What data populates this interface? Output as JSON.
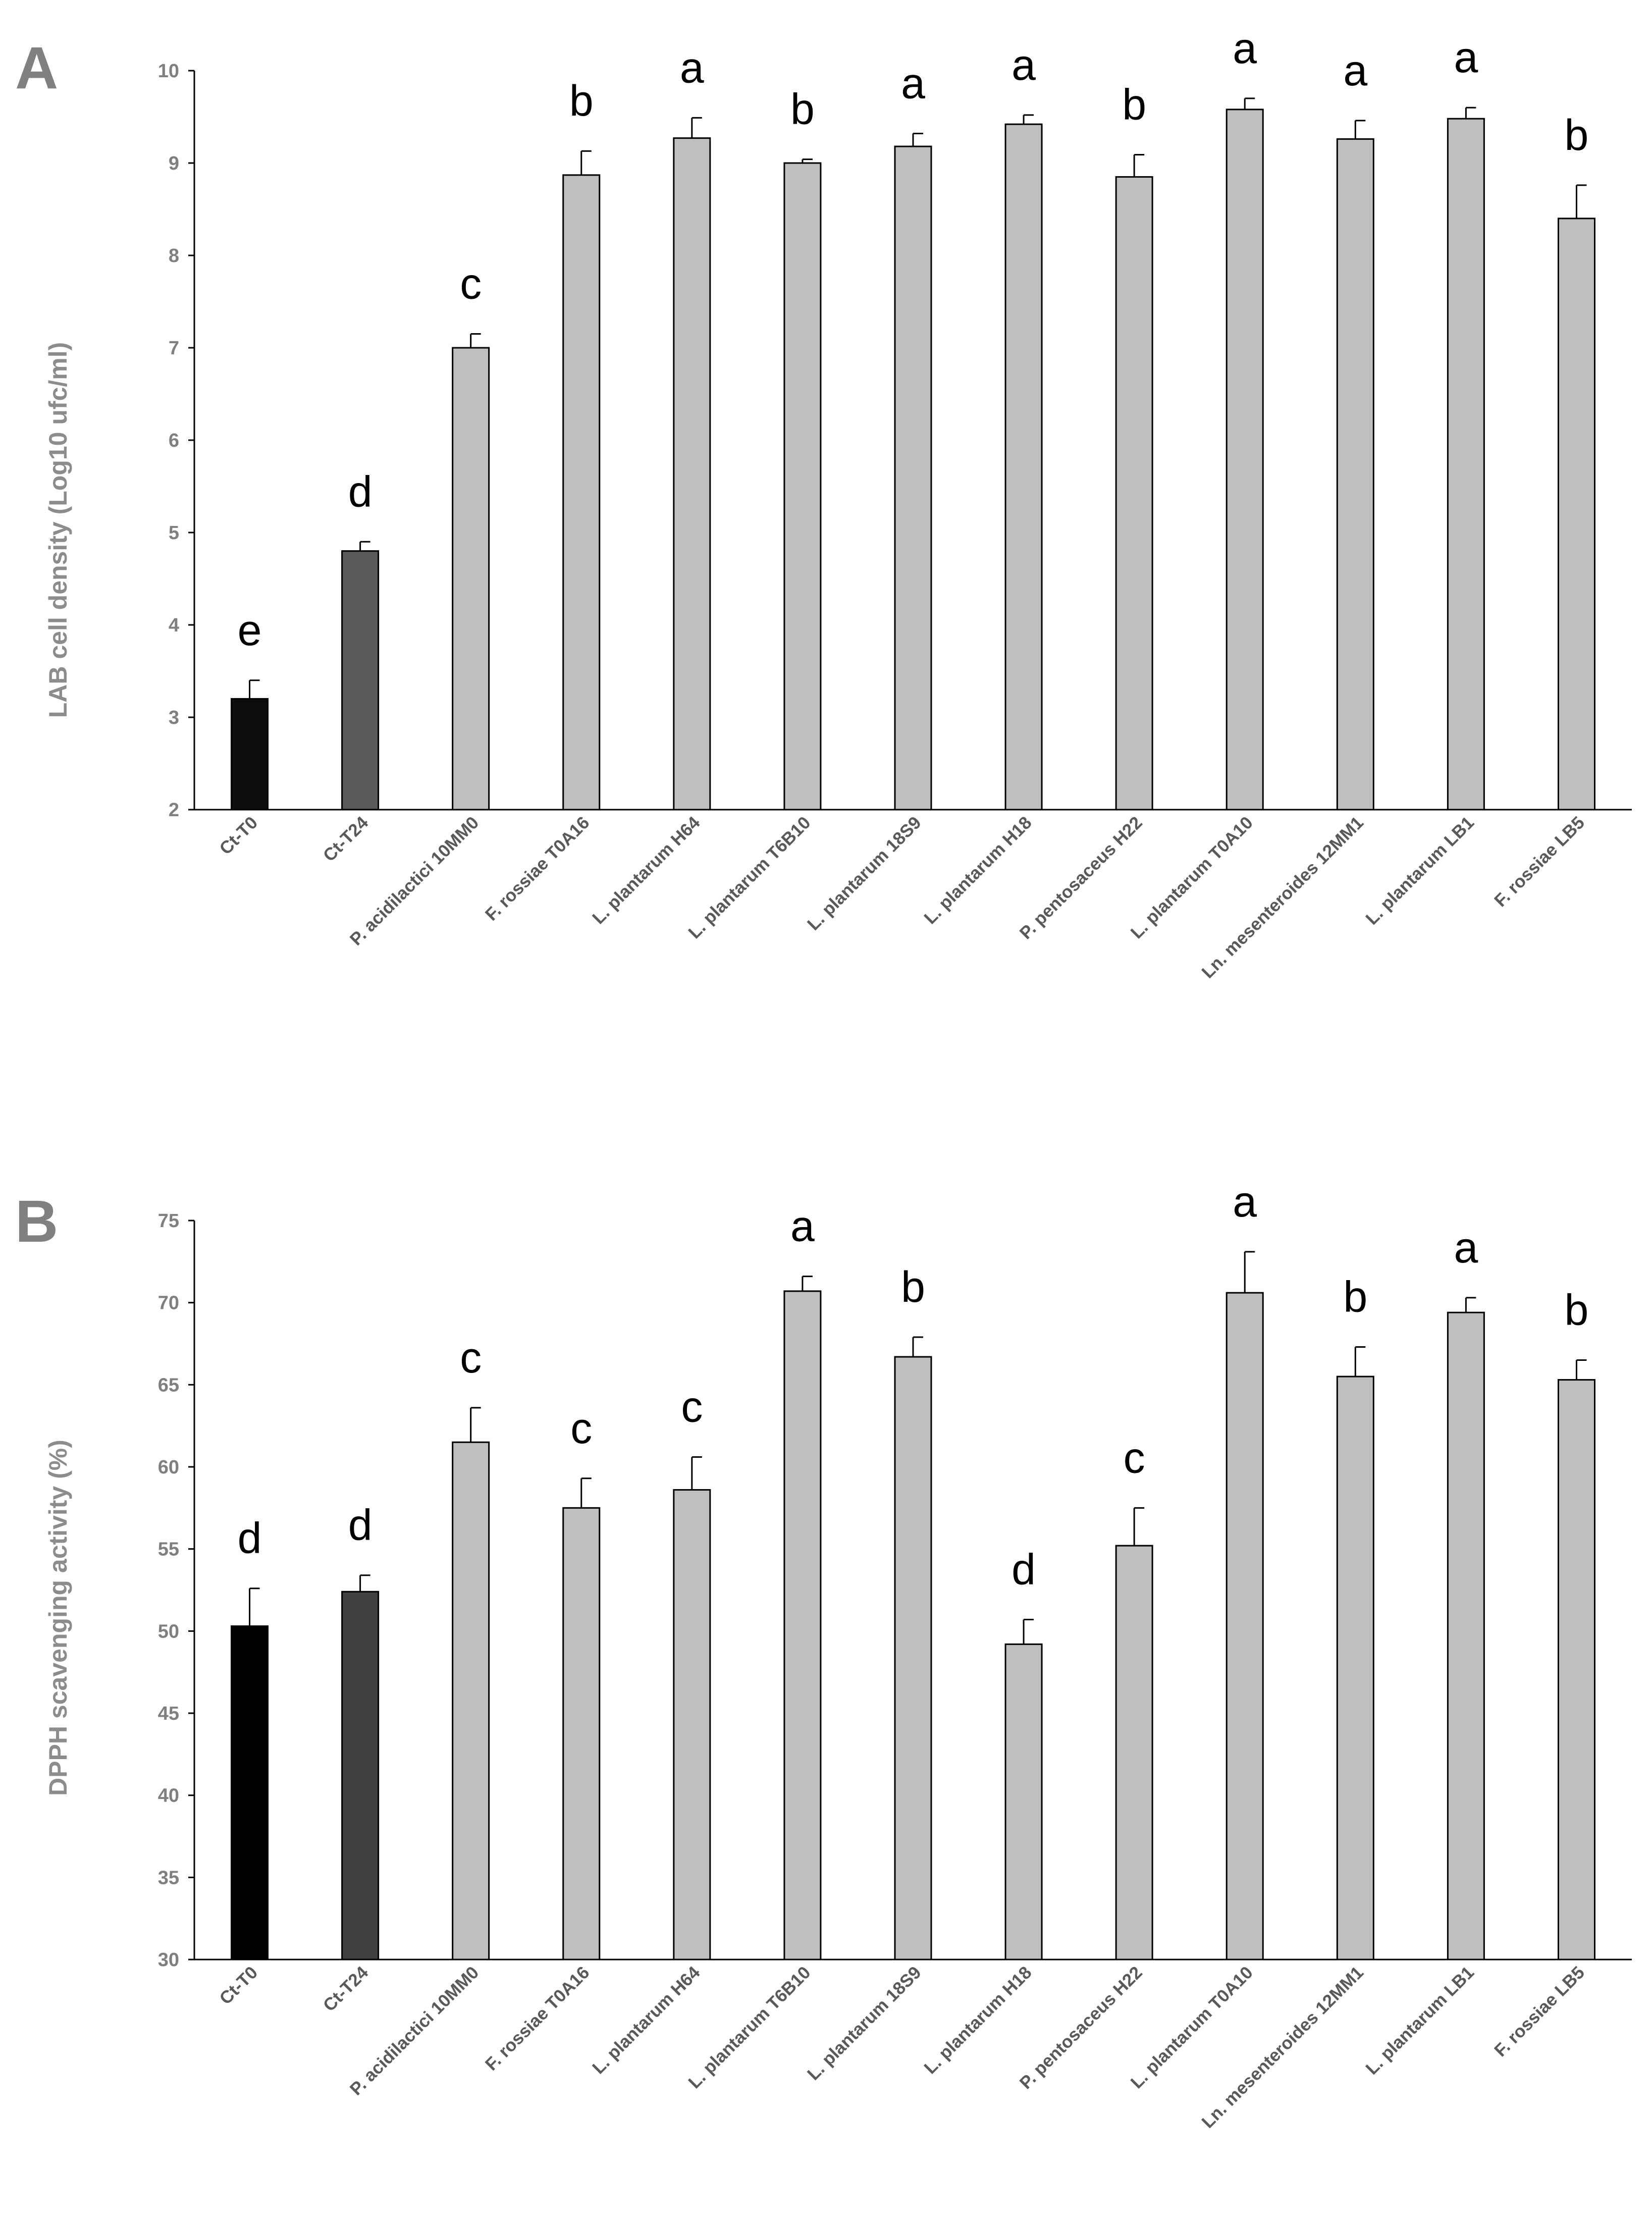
{
  "chart_data": [
    {
      "panel": "A",
      "type": "bar",
      "title": "",
      "xlabel": "",
      "ylabel": "LAB cell density (Log10 ufc/ml)",
      "ylim": [
        2,
        10
      ],
      "yticks": [
        2,
        3,
        4,
        5,
        6,
        7,
        8,
        9,
        10
      ],
      "grid": false,
      "categories": [
        "Ct-T0",
        "Ct-T24",
        "P. acidilactici 10MM0",
        "F. rossiae T0A16",
        "L. plantarum H64",
        "L. plantarum T6B10",
        "L. plantarum 18S9",
        "L. plantarum H18",
        "P. pentosaceus H22",
        "L. plantarum T0A10",
        "Ln. mesenteroides 12MM1",
        "L. plantarum LB1",
        "F. rossiae LB5"
      ],
      "values": [
        3.2,
        4.8,
        7.0,
        8.87,
        9.27,
        9.0,
        9.18,
        9.42,
        8.85,
        9.58,
        9.26,
        9.48,
        8.4
      ],
      "errors": [
        0.2,
        0.1,
        0.15,
        0.26,
        0.22,
        0.04,
        0.14,
        0.1,
        0.24,
        0.12,
        0.2,
        0.12,
        0.36
      ],
      "letters": [
        "e",
        "d",
        "c",
        "b",
        "a",
        "b",
        "a",
        "a",
        "b",
        "a",
        "a",
        "a",
        "b"
      ],
      "colors": [
        "#0d0d0d",
        "#595959",
        "#bfbfbf",
        "#bfbfbf",
        "#bfbfbf",
        "#bfbfbf",
        "#bfbfbf",
        "#bfbfbf",
        "#bfbfbf",
        "#bfbfbf",
        "#bfbfbf",
        "#bfbfbf",
        "#bfbfbf"
      ]
    },
    {
      "panel": "B",
      "type": "bar",
      "title": "",
      "xlabel": "",
      "ylabel": "DPPH scavenging activity (%)",
      "ylim": [
        30,
        75
      ],
      "yticks": [
        30,
        35,
        40,
        45,
        50,
        55,
        60,
        65,
        70,
        75
      ],
      "grid": false,
      "categories": [
        "Ct-T0",
        "Ct-T24",
        "P. acidilactici 10MM0",
        "F. rossiae T0A16",
        "L. plantarum H64",
        "L. plantarum T6B10",
        "L. plantarum 18S9",
        "L. plantarum H18",
        "P. pentosaceus H22",
        "L. plantarum T0A10",
        "Ln. mesenteroides 12MM1",
        "L. plantarum LB1",
        "F. rossiae LB5"
      ],
      "values": [
        50.3,
        52.4,
        61.5,
        57.5,
        58.6,
        70.7,
        66.7,
        49.2,
        55.2,
        70.6,
        65.5,
        69.4,
        65.3
      ],
      "errors": [
        2.3,
        1.0,
        2.1,
        1.8,
        2.0,
        0.9,
        1.2,
        1.5,
        2.3,
        2.5,
        1.8,
        0.9,
        1.2
      ],
      "letters": [
        "d",
        "d",
        "c",
        "c",
        "c",
        "a",
        "b",
        "d",
        "c",
        "a",
        "b",
        "a",
        "b"
      ],
      "colors": [
        "#000000",
        "#404040",
        "#bfbfbf",
        "#bfbfbf",
        "#bfbfbf",
        "#bfbfbf",
        "#bfbfbf",
        "#bfbfbf",
        "#bfbfbf",
        "#bfbfbf",
        "#bfbfbf",
        "#bfbfbf",
        "#bfbfbf"
      ]
    }
  ]
}
